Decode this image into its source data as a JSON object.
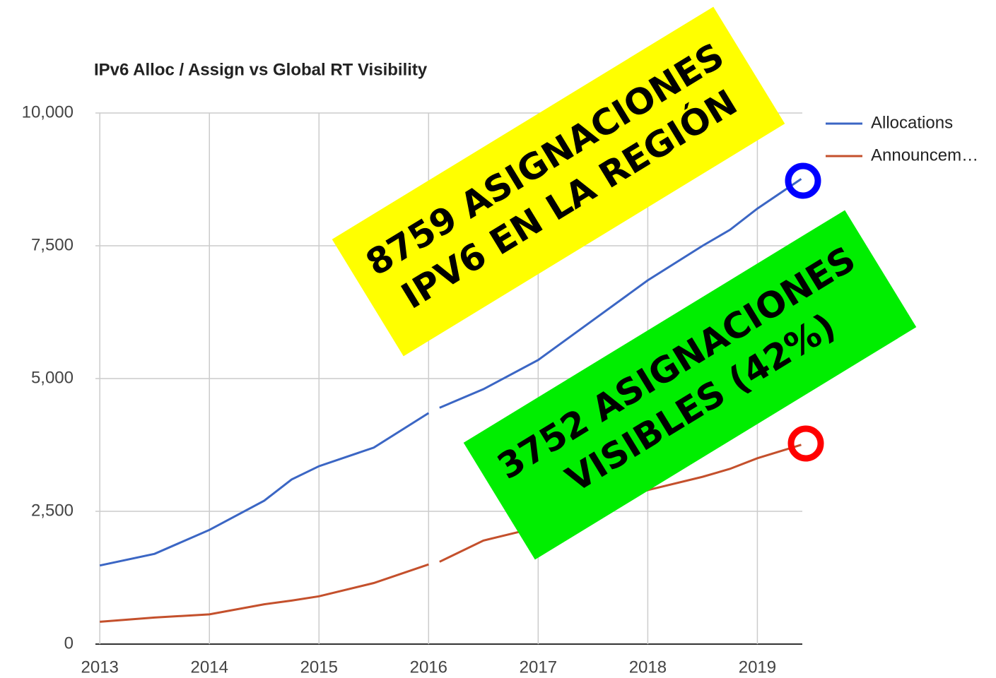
{
  "chart_data": {
    "type": "line",
    "title": "IPv6 Alloc / Assign vs Global RT Visibility",
    "x": [
      2013,
      2013.5,
      2014,
      2014.5,
      2014.75,
      2015,
      2015.5,
      2016,
      2016.03,
      2016.1,
      2016.5,
      2017,
      2017.5,
      2018,
      2018.5,
      2018.75,
      2019,
      2019.4
    ],
    "series": [
      {
        "name": "Allocations",
        "color": "#3b66c4",
        "values": [
          1480,
          1700,
          2150,
          2700,
          3100,
          3350,
          3700,
          4350,
          null,
          4450,
          4800,
          5350,
          6100,
          6850,
          7500,
          7800,
          8200,
          8759
        ]
      },
      {
        "name": "Announcem…",
        "color": "#c4502c",
        "values": [
          420,
          500,
          560,
          750,
          820,
          900,
          1150,
          1500,
          null,
          1550,
          1950,
          2200,
          2600,
          2900,
          3150,
          3300,
          3500,
          3752
        ]
      }
    ],
    "xlim": [
      2012.96,
      2019.41
    ],
    "xticks": [
      2013,
      2014,
      2015,
      2016,
      2017,
      2018,
      2019
    ],
    "ylim": [
      0,
      10000
    ],
    "yticks": [
      0,
      {
        "value": 2500,
        "label": "2,500"
      },
      {
        "value": 5000,
        "label": "5,000"
      },
      {
        "value": 7500,
        "label": "7,500"
      },
      {
        "value": 10000,
        "label": "10,000"
      }
    ],
    "grid": true,
    "annotations": [
      {
        "lines": [
          "8759 ASIGNACIONES",
          "IPV6 EN LA REGIÓN"
        ],
        "color": "#ffff00"
      },
      {
        "lines": [
          "3752 ASIGNACIONES",
          "VISIBLES (42%)"
        ],
        "color": "#00ee00"
      }
    ]
  }
}
